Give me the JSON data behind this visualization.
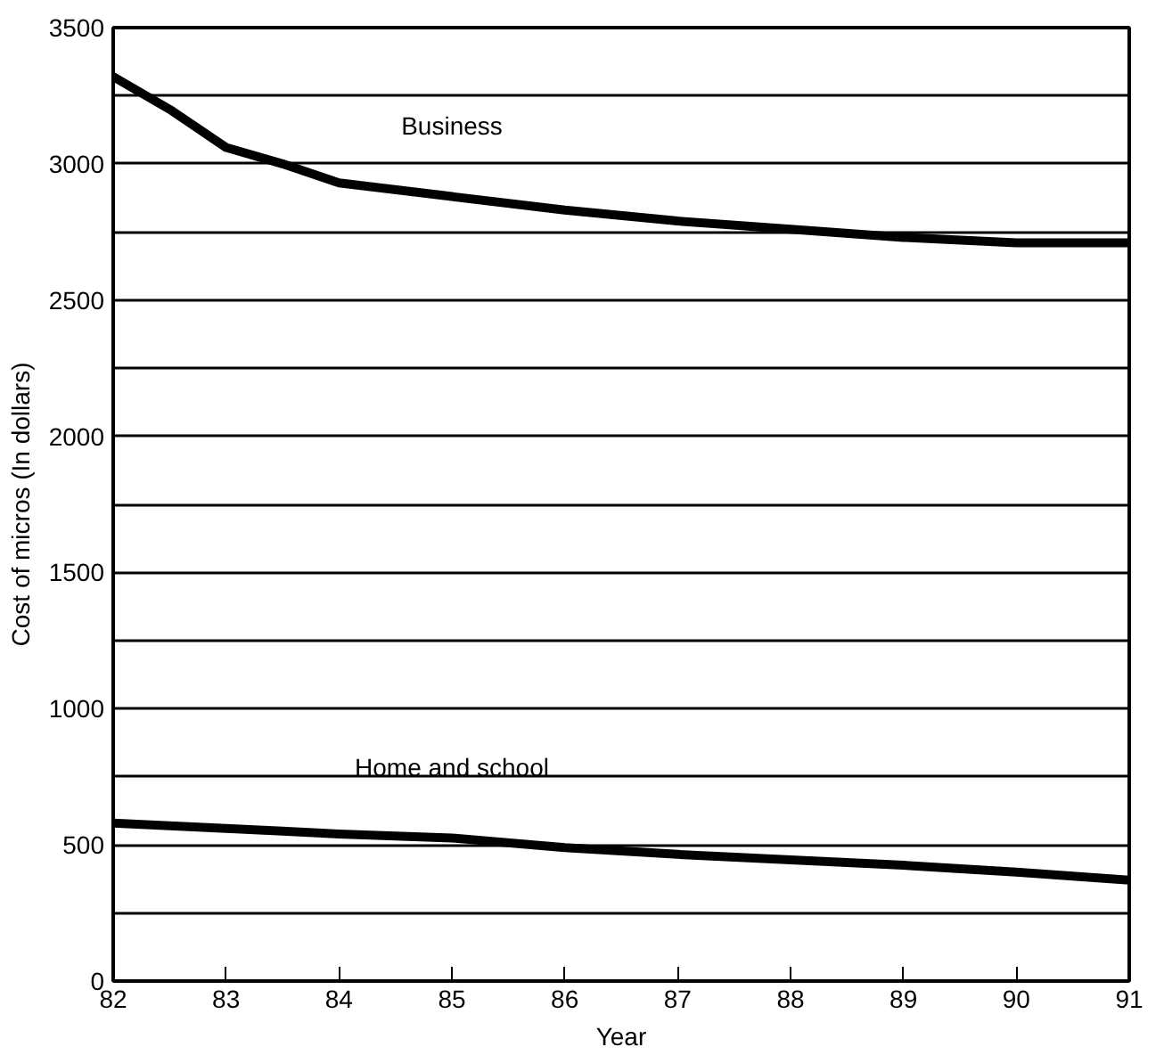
{
  "chart_data": {
    "type": "line",
    "xlabel": "Year",
    "ylabel": "Cost of micros (In dollars)",
    "x": [
      82,
      82.5,
      83,
      83.5,
      84,
      85,
      86,
      87,
      88,
      89,
      90,
      91
    ],
    "series": [
      {
        "name": "Business",
        "color": "#000000",
        "values": [
          3320,
          3200,
          3060,
          3000,
          2930,
          2880,
          2830,
          2790,
          2760,
          2730,
          2710,
          2710
        ]
      },
      {
        "name": "Home and school",
        "color": "#000000",
        "values": [
          580,
          570,
          560,
          550,
          540,
          525,
          490,
          465,
          445,
          425,
          400,
          370
        ]
      }
    ],
    "xlim": [
      82,
      91
    ],
    "ylim": [
      0,
      3500
    ],
    "xticks": [
      82,
      83,
      84,
      85,
      86,
      87,
      88,
      89,
      90,
      91
    ],
    "yticks": [
      0,
      {
        "value": 250,
        "label": null
      },
      500,
      {
        "value": 750,
        "label": null
      },
      1000,
      {
        "value": 1250,
        "label": null
      },
      1500,
      {
        "value": 1750,
        "label": null
      },
      2000,
      {
        "value": 2250,
        "label": null
      },
      2500,
      {
        "value": 2750,
        "label": null
      },
      3000,
      {
        "value": 3250,
        "label": null
      },
      3500
    ],
    "grid": "y",
    "marker": "none",
    "line_style": "solid"
  }
}
